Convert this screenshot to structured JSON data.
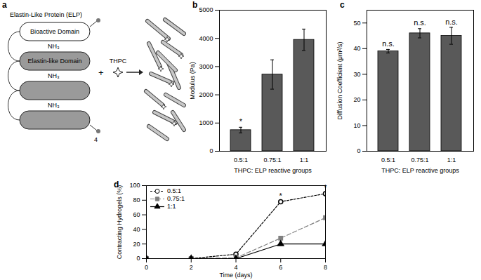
{
  "diagram": {
    "panel": "a",
    "title": "Elastin-Like Protein (ELP)",
    "domains": [
      "Bioactive Domain",
      "Elastin-like Domain"
    ],
    "linkers": [
      "NH₃",
      "NH₃",
      "NH₃"
    ],
    "repeat": "4",
    "operator": "+",
    "crosslinker": "THPC"
  },
  "chart_data": [
    {
      "panel": "b",
      "type": "bar",
      "categories": [
        "0.5:1",
        "0.75:1",
        "1:1"
      ],
      "values": [
        750,
        2720,
        3950
      ],
      "errors": [
        100,
        520,
        380
      ],
      "color": "#595959",
      "ylim": [
        0,
        5000
      ],
      "yticks": [
        0,
        1000,
        2000,
        3000,
        4000,
        5000
      ],
      "x_label": "THPC: ELP reactive groups",
      "y_label": "Modulus (Pa)",
      "annotations": [
        {
          "category": "0.5:1",
          "text": "*"
        }
      ]
    },
    {
      "panel": "c",
      "type": "bar",
      "categories": [
        "0.5:1",
        "0.75:1",
        "1:1"
      ],
      "values": [
        39,
        46,
        45
      ],
      "errors": [
        0.7,
        1.8,
        3.3
      ],
      "color": "#595959",
      "ylim": [
        0,
        55
      ],
      "yticks": [
        0,
        10,
        20,
        30,
        40,
        50
      ],
      "x_label": "THPC: ELP reactive groups",
      "y_label": "Diffusion Coefficient (μm²/s)",
      "annotations": [
        {
          "category": "0.5:1",
          "text": "n.s."
        },
        {
          "category": "0.75:1",
          "text": "n.s."
        },
        {
          "category": "1:1",
          "text": "n.s."
        }
      ]
    },
    {
      "panel": "d",
      "type": "line",
      "x": [
        0,
        2,
        4,
        6,
        8
      ],
      "xlim": [
        0,
        8
      ],
      "xticks": [
        0,
        2,
        4,
        6,
        8
      ],
      "ylim": [
        0,
        100
      ],
      "yticks": [
        0,
        20,
        40,
        60,
        80,
        100
      ],
      "x_label": "Time (days)",
      "y_label": "Contracting Hydrogels (%)",
      "legend": "upper left",
      "series": [
        {
          "name": "0.5:1",
          "color": "#000000",
          "marker": "circle-open",
          "line_style": "dotted",
          "values": [
            0,
            0,
            6,
            78,
            89
          ]
        },
        {
          "name": "0.75:1",
          "color": "#808080",
          "marker": "square",
          "line_style": "dashed",
          "values": [
            0,
            0,
            1,
            28,
            56
          ]
        },
        {
          "name": "1:1",
          "color": "#000000",
          "marker": "triangle",
          "line_style": "solid",
          "values": [
            0,
            0,
            0,
            20,
            20
          ]
        }
      ],
      "annotations": [
        {
          "x": 6,
          "text": "*"
        },
        {
          "x": 8,
          "text": "*"
        }
      ]
    }
  ]
}
